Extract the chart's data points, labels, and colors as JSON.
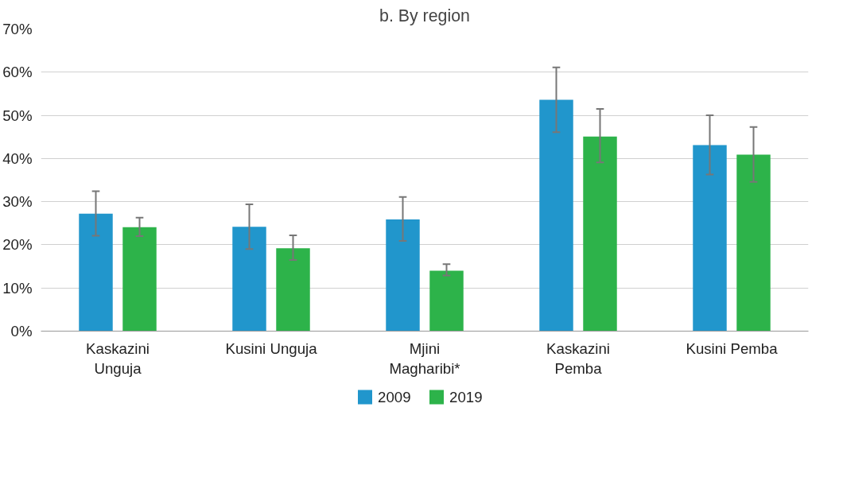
{
  "chart_data": {
    "type": "bar",
    "title": "b. By region",
    "categories": [
      "Kaskazini\nUnguja",
      "Kusini Unguja",
      "Mjini\nMagharibi*",
      "Kaskazini\nPemba",
      "Kusini Pemba"
    ],
    "series": [
      {
        "name": "2009",
        "color": "#2196cc",
        "values": [
          27.2,
          24.2,
          25.9,
          53.6,
          43.1
        ],
        "errors": [
          [
            22.1,
            32.4
          ],
          [
            19.0,
            29.4
          ],
          [
            20.9,
            31.1
          ],
          [
            46.1,
            61.1
          ],
          [
            36.3,
            50.0
          ]
        ]
      },
      {
        "name": "2019",
        "color": "#2db34a",
        "values": [
          24.1,
          19.2,
          14.0,
          45.1,
          40.9
        ],
        "errors": [
          [
            22.0,
            26.3
          ],
          [
            16.5,
            22.2
          ],
          [
            12.9,
            15.5
          ],
          [
            39.1,
            51.5
          ],
          [
            34.6,
            47.3
          ]
        ]
      }
    ],
    "ylim": [
      0,
      70
    ],
    "yticks": [
      {
        "value": 0,
        "label": "0%"
      },
      {
        "value": 10,
        "label": "10%"
      },
      {
        "value": 20,
        "label": "20%"
      },
      {
        "value": 30,
        "label": "30%"
      },
      {
        "value": 40,
        "label": "40%"
      },
      {
        "value": 50,
        "label": "50%"
      },
      {
        "value": 60,
        "label": "60%"
      },
      {
        "value": 70,
        "label": "70%"
      }
    ],
    "grid": "y",
    "legend": "bottom"
  }
}
